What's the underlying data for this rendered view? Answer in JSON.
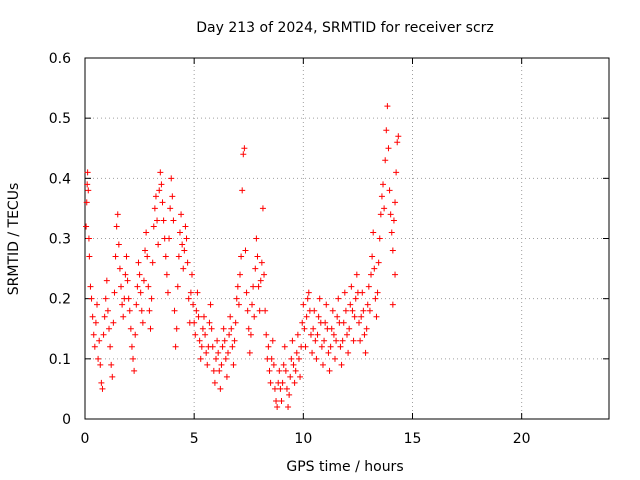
{
  "chart_data": {
    "type": "scatter",
    "title": "Day 213 of 2024, SRMTID for receiver scrz",
    "xlabel": "GPS time / hours",
    "ylabel": "SRMTID / TECUs",
    "xlim": [
      0,
      24
    ],
    "ylim": [
      0,
      0.6
    ],
    "xticks": [
      0,
      5,
      10,
      15,
      20
    ],
    "yticks": [
      0,
      0.1,
      0.2,
      0.3,
      0.4,
      0.5,
      0.6
    ],
    "xtick_labels": [
      "0",
      "5",
      "10",
      "15",
      "20"
    ],
    "ytick_labels": [
      "0",
      "0.1",
      "0.2",
      "0.3",
      "0.4",
      "0.5",
      "0.6"
    ],
    "grid": true,
    "marker": "+",
    "color": "#ff0000",
    "series": [
      {
        "name": "scrz",
        "points": [
          [
            0.05,
            0.32
          ],
          [
            0.08,
            0.36
          ],
          [
            0.1,
            0.39
          ],
          [
            0.12,
            0.41
          ],
          [
            0.15,
            0.38
          ],
          [
            0.18,
            0.3
          ],
          [
            0.2,
            0.27
          ],
          [
            0.25,
            0.22
          ],
          [
            0.3,
            0.2
          ],
          [
            0.35,
            0.17
          ],
          [
            0.4,
            0.14
          ],
          [
            0.45,
            0.12
          ],
          [
            0.5,
            0.16
          ],
          [
            0.55,
            0.19
          ],
          [
            0.6,
            0.1
          ],
          [
            0.65,
            0.13
          ],
          [
            0.7,
            0.09
          ],
          [
            0.75,
            0.06
          ],
          [
            0.8,
            0.05
          ],
          [
            0.85,
            0.14
          ],
          [
            0.9,
            0.17
          ],
          [
            0.95,
            0.2
          ],
          [
            1.0,
            0.23
          ],
          [
            1.05,
            0.18
          ],
          [
            1.1,
            0.15
          ],
          [
            1.15,
            0.12
          ],
          [
            1.2,
            0.09
          ],
          [
            1.25,
            0.07
          ],
          [
            1.3,
            0.16
          ],
          [
            1.35,
            0.21
          ],
          [
            1.4,
            0.27
          ],
          [
            1.45,
            0.32
          ],
          [
            1.5,
            0.34
          ],
          [
            1.55,
            0.29
          ],
          [
            1.6,
            0.25
          ],
          [
            1.65,
            0.22
          ],
          [
            1.7,
            0.19
          ],
          [
            1.75,
            0.17
          ],
          [
            1.8,
            0.2
          ],
          [
            1.85,
            0.24
          ],
          [
            1.9,
            0.27
          ],
          [
            1.95,
            0.23
          ],
          [
            2.0,
            0.2
          ],
          [
            2.05,
            0.18
          ],
          [
            2.1,
            0.15
          ],
          [
            2.15,
            0.12
          ],
          [
            2.2,
            0.1
          ],
          [
            2.25,
            0.08
          ],
          [
            2.3,
            0.14
          ],
          [
            2.35,
            0.19
          ],
          [
            2.4,
            0.22
          ],
          [
            2.45,
            0.26
          ],
          [
            2.5,
            0.24
          ],
          [
            2.55,
            0.21
          ],
          [
            2.6,
            0.18
          ],
          [
            2.65,
            0.16
          ],
          [
            2.7,
            0.23
          ],
          [
            2.75,
            0.28
          ],
          [
            2.8,
            0.31
          ],
          [
            2.85,
            0.27
          ],
          [
            2.9,
            0.22
          ],
          [
            2.95,
            0.18
          ],
          [
            3.0,
            0.15
          ],
          [
            3.05,
            0.2
          ],
          [
            3.1,
            0.26
          ],
          [
            3.15,
            0.32
          ],
          [
            3.2,
            0.35
          ],
          [
            3.25,
            0.37
          ],
          [
            3.3,
            0.33
          ],
          [
            3.35,
            0.29
          ],
          [
            3.4,
            0.38
          ],
          [
            3.45,
            0.41
          ],
          [
            3.5,
            0.39
          ],
          [
            3.55,
            0.36
          ],
          [
            3.6,
            0.33
          ],
          [
            3.65,
            0.3
          ],
          [
            3.7,
            0.27
          ],
          [
            3.75,
            0.24
          ],
          [
            3.8,
            0.21
          ],
          [
            3.85,
            0.3
          ],
          [
            3.9,
            0.35
          ],
          [
            3.95,
            0.4
          ],
          [
            4.0,
            0.37
          ],
          [
            4.05,
            0.33
          ],
          [
            4.1,
            0.18
          ],
          [
            4.15,
            0.12
          ],
          [
            4.2,
            0.15
          ],
          [
            4.25,
            0.22
          ],
          [
            4.3,
            0.27
          ],
          [
            4.35,
            0.31
          ],
          [
            4.4,
            0.34
          ],
          [
            4.45,
            0.29
          ],
          [
            4.5,
            0.25
          ],
          [
            4.55,
            0.28
          ],
          [
            4.6,
            0.32
          ],
          [
            4.65,
            0.3
          ],
          [
            4.7,
            0.26
          ],
          [
            4.75,
            0.2
          ],
          [
            4.8,
            0.16
          ],
          [
            4.85,
            0.21
          ],
          [
            4.9,
            0.24
          ],
          [
            4.95,
            0.19
          ],
          [
            5.0,
            0.16
          ],
          [
            5.05,
            0.14
          ],
          [
            5.1,
            0.18
          ],
          [
            5.15,
            0.21
          ],
          [
            5.2,
            0.17
          ],
          [
            5.25,
            0.13
          ],
          [
            5.3,
            0.1
          ],
          [
            5.35,
            0.12
          ],
          [
            5.4,
            0.15
          ],
          [
            5.45,
            0.17
          ],
          [
            5.5,
            0.14
          ],
          [
            5.55,
            0.11
          ],
          [
            5.6,
            0.09
          ],
          [
            5.65,
            0.12
          ],
          [
            5.7,
            0.16
          ],
          [
            5.75,
            0.19
          ],
          [
            5.8,
            0.15
          ],
          [
            5.85,
            0.12
          ],
          [
            5.9,
            0.08
          ],
          [
            5.95,
            0.06
          ],
          [
            6.0,
            0.1
          ],
          [
            6.05,
            0.13
          ],
          [
            6.1,
            0.11
          ],
          [
            6.15,
            0.08
          ],
          [
            6.2,
            0.05
          ],
          [
            6.25,
            0.09
          ],
          [
            6.3,
            0.12
          ],
          [
            6.35,
            0.15
          ],
          [
            6.4,
            0.13
          ],
          [
            6.45,
            0.1
          ],
          [
            6.5,
            0.07
          ],
          [
            6.55,
            0.11
          ],
          [
            6.6,
            0.14
          ],
          [
            6.65,
            0.17
          ],
          [
            6.7,
            0.15
          ],
          [
            6.75,
            0.12
          ],
          [
            6.8,
            0.09
          ],
          [
            6.85,
            0.13
          ],
          [
            6.9,
            0.16
          ],
          [
            6.95,
            0.2
          ],
          [
            7.0,
            0.22
          ],
          [
            7.05,
            0.19
          ],
          [
            7.1,
            0.24
          ],
          [
            7.15,
            0.27
          ],
          [
            7.2,
            0.38
          ],
          [
            7.25,
            0.44
          ],
          [
            7.3,
            0.45
          ],
          [
            7.35,
            0.28
          ],
          [
            7.4,
            0.21
          ],
          [
            7.45,
            0.18
          ],
          [
            7.5,
            0.15
          ],
          [
            7.55,
            0.11
          ],
          [
            7.6,
            0.14
          ],
          [
            7.65,
            0.19
          ],
          [
            7.7,
            0.22
          ],
          [
            7.75,
            0.17
          ],
          [
            7.8,
            0.25
          ],
          [
            7.85,
            0.3
          ],
          [
            7.9,
            0.27
          ],
          [
            7.95,
            0.22
          ],
          [
            8.0,
            0.18
          ],
          [
            8.05,
            0.23
          ],
          [
            8.1,
            0.26
          ],
          [
            8.15,
            0.35
          ],
          [
            8.2,
            0.24
          ],
          [
            8.25,
            0.18
          ],
          [
            8.3,
            0.14
          ],
          [
            8.35,
            0.1
          ],
          [
            8.4,
            0.12
          ],
          [
            8.45,
            0.08
          ],
          [
            8.5,
            0.06
          ],
          [
            8.55,
            0.1
          ],
          [
            8.6,
            0.13
          ],
          [
            8.65,
            0.09
          ],
          [
            8.7,
            0.05
          ],
          [
            8.75,
            0.03
          ],
          [
            8.8,
            0.02
          ],
          [
            8.85,
            0.06
          ],
          [
            8.9,
            0.08
          ],
          [
            8.95,
            0.05
          ],
          [
            9.0,
            0.03
          ],
          [
            9.05,
            0.06
          ],
          [
            9.1,
            0.09
          ],
          [
            9.15,
            0.12
          ],
          [
            9.2,
            0.08
          ],
          [
            9.25,
            0.05
          ],
          [
            9.3,
            0.02
          ],
          [
            9.35,
            0.04
          ],
          [
            9.4,
            0.07
          ],
          [
            9.45,
            0.1
          ],
          [
            9.5,
            0.13
          ],
          [
            9.55,
            0.09
          ],
          [
            9.6,
            0.06
          ],
          [
            9.65,
            0.08
          ],
          [
            9.7,
            0.11
          ],
          [
            9.75,
            0.14
          ],
          [
            9.8,
            0.1
          ],
          [
            9.85,
            0.07
          ],
          [
            9.9,
            0.12
          ],
          [
            9.95,
            0.16
          ],
          [
            10.0,
            0.19
          ],
          [
            10.05,
            0.15
          ],
          [
            10.1,
            0.12
          ],
          [
            10.15,
            0.17
          ],
          [
            10.2,
            0.2
          ],
          [
            10.25,
            0.21
          ],
          [
            10.3,
            0.18
          ],
          [
            10.35,
            0.14
          ],
          [
            10.4,
            0.11
          ],
          [
            10.45,
            0.15
          ],
          [
            10.5,
            0.18
          ],
          [
            10.55,
            0.13
          ],
          [
            10.6,
            0.1
          ],
          [
            10.65,
            0.14
          ],
          [
            10.7,
            0.17
          ],
          [
            10.75,
            0.2
          ],
          [
            10.8,
            0.16
          ],
          [
            10.85,
            0.12
          ],
          [
            10.9,
            0.09
          ],
          [
            10.95,
            0.13
          ],
          [
            11.0,
            0.16
          ],
          [
            11.05,
            0.19
          ],
          [
            11.1,
            0.15
          ],
          [
            11.15,
            0.11
          ],
          [
            11.2,
            0.08
          ],
          [
            11.25,
            0.12
          ],
          [
            11.3,
            0.15
          ],
          [
            11.35,
            0.18
          ],
          [
            11.4,
            0.14
          ],
          [
            11.45,
            0.1
          ],
          [
            11.5,
            0.13
          ],
          [
            11.55,
            0.17
          ],
          [
            11.6,
            0.2
          ],
          [
            11.65,
            0.16
          ],
          [
            11.7,
            0.12
          ],
          [
            11.75,
            0.09
          ],
          [
            11.8,
            0.13
          ],
          [
            11.85,
            0.16
          ],
          [
            11.9,
            0.21
          ],
          [
            11.95,
            0.18
          ],
          [
            12.0,
            0.14
          ],
          [
            12.05,
            0.11
          ],
          [
            12.1,
            0.15
          ],
          [
            12.15,
            0.19
          ],
          [
            12.2,
            0.22
          ],
          [
            12.25,
            0.18
          ],
          [
            12.3,
            0.13
          ],
          [
            12.35,
            0.17
          ],
          [
            12.4,
            0.2
          ],
          [
            12.45,
            0.24
          ],
          [
            12.5,
            0.21
          ],
          [
            12.55,
            0.16
          ],
          [
            12.6,
            0.13
          ],
          [
            12.65,
            0.17
          ],
          [
            12.7,
            0.21
          ],
          [
            12.75,
            0.18
          ],
          [
            12.8,
            0.14
          ],
          [
            12.85,
            0.11
          ],
          [
            12.9,
            0.15
          ],
          [
            12.95,
            0.19
          ],
          [
            13.0,
            0.22
          ],
          [
            13.05,
            0.18
          ],
          [
            13.1,
            0.24
          ],
          [
            13.15,
            0.27
          ],
          [
            13.2,
            0.31
          ],
          [
            13.25,
            0.25
          ],
          [
            13.3,
            0.2
          ],
          [
            13.35,
            0.17
          ],
          [
            13.4,
            0.21
          ],
          [
            13.45,
            0.26
          ],
          [
            13.5,
            0.3
          ],
          [
            13.55,
            0.34
          ],
          [
            13.6,
            0.37
          ],
          [
            13.65,
            0.39
          ],
          [
            13.7,
            0.35
          ],
          [
            13.75,
            0.43
          ],
          [
            13.8,
            0.48
          ],
          [
            13.85,
            0.52
          ],
          [
            13.9,
            0.45
          ],
          [
            13.95,
            0.38
          ],
          [
            14.0,
            0.34
          ],
          [
            14.05,
            0.31
          ],
          [
            14.1,
            0.28
          ],
          [
            14.15,
            0.33
          ],
          [
            14.2,
            0.36
          ],
          [
            14.25,
            0.41
          ],
          [
            14.3,
            0.46
          ],
          [
            14.35,
            0.47
          ],
          [
            14.2,
            0.24
          ],
          [
            14.1,
            0.19
          ]
        ]
      }
    ]
  }
}
